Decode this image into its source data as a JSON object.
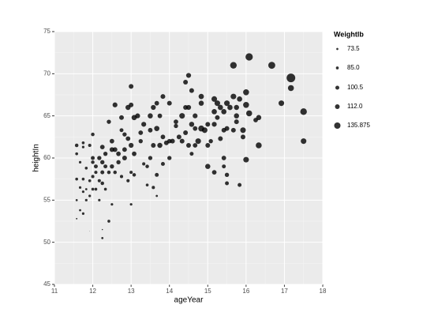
{
  "chart_data": {
    "type": "scatter",
    "xlabel": "ageYear",
    "ylabel": "heightIn",
    "xlim": [
      11,
      18
    ],
    "ylim": [
      45,
      75
    ],
    "xticks": [
      11,
      12,
      13,
      14,
      15,
      16,
      17,
      18
    ],
    "yticks": [
      45,
      50,
      55,
      60,
      65,
      70,
      75
    ],
    "grid": true,
    "color": "#000000",
    "size_legend": {
      "title": "Weightlb",
      "position": "right",
      "breaks": [
        73.5,
        {
          "value": 85,
          "label": "85.0"
        },
        100.5,
        {
          "value": 112,
          "label": "112.0"
        },
        135.875
      ]
    },
    "x": [
      11.58,
      11.58,
      11.58,
      11.58,
      11.58,
      11.67,
      11.67,
      11.67,
      11.75,
      11.75,
      11.75,
      11.75,
      11.75,
      11.83,
      11.83,
      11.83,
      11.92,
      11.92,
      11.92,
      11.92,
      12.0,
      12.0,
      12.0,
      12.0,
      12.0,
      12.08,
      12.08,
      12.08,
      12.17,
      12.17,
      12.17,
      12.25,
      12.25,
      12.25,
      12.25,
      12.25,
      12.25,
      12.33,
      12.33,
      12.33,
      12.42,
      12.42,
      12.42,
      12.5,
      12.5,
      12.5,
      12.5,
      12.58,
      12.58,
      12.58,
      12.67,
      12.67,
      12.75,
      12.75,
      12.75,
      12.83,
      12.83,
      12.83,
      12.92,
      12.92,
      12.92,
      13.0,
      13.0,
      13.0,
      13.0,
      13.0,
      13.08,
      13.08,
      13.08,
      13.17,
      13.25,
      13.25,
      13.33,
      13.33,
      13.42,
      13.42,
      13.5,
      13.5,
      13.5,
      13.58,
      13.58,
      13.58,
      13.67,
      13.67,
      13.67,
      13.67,
      13.75,
      13.75,
      13.83,
      13.83,
      13.83,
      13.92,
      14.0,
      14.0,
      14.0,
      14.08,
      14.17,
      14.17,
      14.25,
      14.33,
      14.33,
      14.42,
      14.42,
      14.42,
      14.5,
      14.5,
      14.5,
      14.58,
      14.58,
      14.58,
      14.67,
      14.67,
      14.67,
      14.75,
      14.83,
      14.83,
      14.83,
      14.92,
      15.0,
      15.0,
      15.0,
      15.08,
      15.17,
      15.17,
      15.17,
      15.17,
      15.25,
      15.25,
      15.33,
      15.33,
      15.42,
      15.42,
      15.42,
      15.42,
      15.5,
      15.5,
      15.5,
      15.5,
      15.58,
      15.67,
      15.67,
      15.67,
      15.75,
      15.75,
      15.75,
      15.83,
      15.83,
      15.92,
      15.92,
      16.0,
      16.0,
      16.0,
      16.08,
      16.08,
      16.25,
      16.33,
      16.33,
      16.67,
      16.92,
      17.17,
      17.17,
      17.5,
      17.5
    ],
    "values": [
      61.5,
      60.5,
      57.5,
      55,
      52.8,
      59.5,
      56.5,
      53.8,
      53.4,
      61.8,
      61.3,
      57.5,
      56,
      58.8,
      56.3,
      55,
      61.5,
      57.3,
      55.5,
      51.3,
      62.8,
      60,
      59.5,
      57.8,
      56.3,
      59,
      58.3,
      56.3,
      60,
      57.3,
      55,
      61.3,
      59.5,
      58.3,
      57,
      51.5,
      50.5,
      60.5,
      59,
      56.3,
      64.3,
      58.3,
      52.5,
      62,
      61,
      59,
      54.5,
      66.3,
      61,
      58.3,
      60.5,
      59.5,
      64.8,
      63.3,
      57.8,
      61,
      62.8,
      60,
      66,
      62.3,
      57.3,
      68.5,
      66.3,
      61.5,
      58.3,
      54.5,
      64.8,
      60.5,
      58,
      65,
      63,
      62,
      64,
      59.3,
      56.8,
      59,
      65,
      63.3,
      60,
      66,
      61.5,
      56.5,
      66.5,
      63.5,
      58,
      55.5,
      65,
      61.5,
      67.3,
      62.5,
      59.3,
      61.8,
      66.5,
      62,
      60,
      62,
      64.3,
      63.8,
      62.5,
      65,
      62,
      69,
      66,
      63,
      69.8,
      66,
      61.5,
      68,
      64,
      60.5,
      65,
      63.5,
      61.5,
      62,
      67.3,
      66.5,
      63.5,
      63.3,
      64,
      61.5,
      59,
      62,
      67,
      65.5,
      64,
      58.3,
      66.5,
      64.8,
      66,
      62.3,
      65.5,
      63.3,
      60,
      59,
      66.5,
      63.5,
      58,
      57,
      66,
      71,
      67.3,
      63.3,
      66,
      64.3,
      65,
      67,
      56.8,
      63.3,
      62.5,
      67.8,
      66.3,
      59.8,
      72,
      65.3,
      64.5,
      64.8,
      61.5,
      71,
      66.5,
      69.5,
      68.3,
      65.5,
      62
    ],
    "sizes": [
      95,
      85,
      85,
      75,
      65,
      80,
      80,
      75,
      80,
      85,
      80,
      85,
      80,
      85,
      75,
      80,
      90,
      85,
      80,
      50,
      95,
      100,
      95,
      90,
      85,
      100,
      90,
      85,
      105,
      90,
      80,
      110,
      105,
      100,
      95,
      60,
      75,
      105,
      100,
      85,
      105,
      95,
      85,
      110,
      112,
      105,
      80,
      115,
      112,
      95,
      110,
      105,
      112,
      100,
      90,
      110,
      105,
      112,
      118,
      110,
      90,
      112,
      112,
      115,
      90,
      80,
      120,
      110,
      95,
      115,
      110,
      105,
      115,
      90,
      85,
      95,
      118,
      110,
      105,
      115,
      112,
      90,
      110,
      120,
      100,
      75,
      110,
      118,
      112,
      110,
      100,
      112,
      112,
      108,
      105,
      112,
      110,
      105,
      112,
      125,
      112,
      112,
      112,
      112,
      115,
      115,
      112,
      112,
      118,
      100,
      115,
      110,
      110,
      125,
      120,
      118,
      130,
      125,
      112,
      112,
      118,
      105,
      125,
      120,
      115,
      110,
      125,
      112,
      120,
      112,
      120,
      112,
      110,
      100,
      125,
      112,
      105,
      100,
      120,
      140,
      125,
      112,
      118,
      112,
      118,
      120,
      100,
      125,
      112,
      130,
      130,
      125,
      150,
      130,
      110,
      118,
      130,
      145,
      125,
      170,
      130,
      140,
      125
    ]
  }
}
